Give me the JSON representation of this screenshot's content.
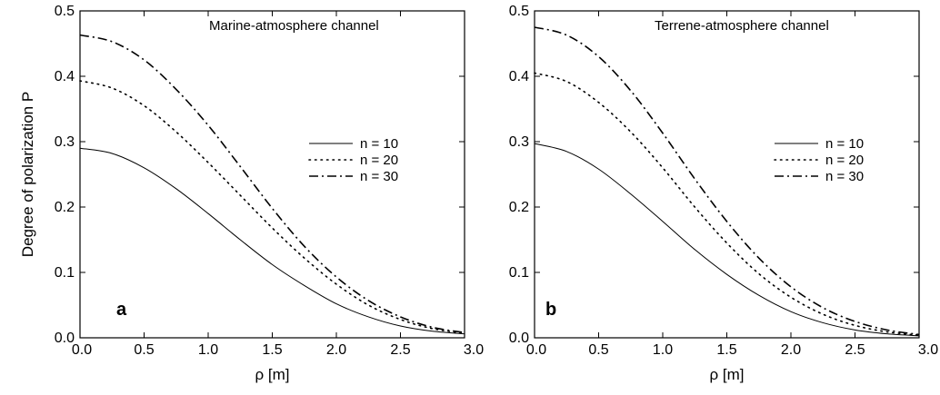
{
  "chart_data": [
    {
      "type": "line",
      "panel_label": "a",
      "annotation": "Marine-atmosphere channel",
      "xlabel": "ρ [m]",
      "ylabel": "Degree of polarization P",
      "xlim": [
        0,
        3
      ],
      "ylim": [
        0,
        0.5
      ],
      "xticks": [
        "0.0",
        "0.5",
        "1.0",
        "1.5",
        "2.0",
        "2.5",
        "3.0"
      ],
      "yticks": [
        "0.0",
        "0.1",
        "0.2",
        "0.3",
        "0.4",
        "0.5"
      ],
      "grid": false,
      "legend_position": "right",
      "series": [
        {
          "name": "n = 10",
          "style": "solid",
          "x": [
            0,
            0.25,
            0.5,
            0.75,
            1.0,
            1.25,
            1.5,
            1.75,
            2.0,
            2.25,
            2.5,
            2.75,
            3.0
          ],
          "y": [
            0.29,
            0.282,
            0.26,
            0.228,
            0.19,
            0.15,
            0.112,
            0.08,
            0.052,
            0.032,
            0.018,
            0.01,
            0.006
          ]
        },
        {
          "name": "n = 20",
          "style": "dotted",
          "x": [
            0,
            0.25,
            0.5,
            0.75,
            1.0,
            1.25,
            1.5,
            1.75,
            2.0,
            2.25,
            2.5,
            2.75,
            3.0
          ],
          "y": [
            0.393,
            0.382,
            0.355,
            0.315,
            0.268,
            0.218,
            0.168,
            0.122,
            0.082,
            0.05,
            0.028,
            0.014,
            0.007
          ]
        },
        {
          "name": "n = 30",
          "style": "dashdot",
          "x": [
            0,
            0.25,
            0.5,
            0.75,
            1.0,
            1.25,
            1.5,
            1.75,
            2.0,
            2.25,
            2.5,
            2.75,
            3.0
          ],
          "y": [
            0.463,
            0.453,
            0.425,
            0.38,
            0.325,
            0.262,
            0.198,
            0.14,
            0.093,
            0.057,
            0.032,
            0.016,
            0.008
          ]
        }
      ]
    },
    {
      "type": "line",
      "panel_label": "b",
      "annotation": "Terrene-atmosphere channel",
      "xlabel": "ρ [m]",
      "ylabel": "",
      "xlim": [
        0,
        3
      ],
      "ylim": [
        0,
        0.5
      ],
      "xticks": [
        "0.0",
        "0.5",
        "1.0",
        "1.5",
        "2.0",
        "2.5",
        "3.0"
      ],
      "yticks": [
        "0.0",
        "0.1",
        "0.2",
        "0.3",
        "0.4",
        "0.5"
      ],
      "grid": false,
      "legend_position": "right",
      "series": [
        {
          "name": "n = 10",
          "style": "solid",
          "x": [
            0,
            0.25,
            0.5,
            0.75,
            1.0,
            1.25,
            1.5,
            1.75,
            2.0,
            2.25,
            2.5,
            2.75,
            3.0
          ],
          "y": [
            0.297,
            0.285,
            0.258,
            0.22,
            0.178,
            0.135,
            0.097,
            0.065,
            0.04,
            0.023,
            0.012,
            0.006,
            0.003
          ]
        },
        {
          "name": "n = 20",
          "style": "dotted",
          "x": [
            0,
            0.25,
            0.5,
            0.75,
            1.0,
            1.25,
            1.5,
            1.75,
            2.0,
            2.25,
            2.5,
            2.75,
            3.0
          ],
          "y": [
            0.405,
            0.392,
            0.36,
            0.315,
            0.26,
            0.2,
            0.145,
            0.098,
            0.062,
            0.036,
            0.019,
            0.009,
            0.004
          ]
        },
        {
          "name": "n = 30",
          "style": "dashdot",
          "x": [
            0,
            0.25,
            0.5,
            0.75,
            1.0,
            1.25,
            1.5,
            1.75,
            2.0,
            2.25,
            2.5,
            2.75,
            3.0
          ],
          "y": [
            0.475,
            0.463,
            0.43,
            0.378,
            0.313,
            0.243,
            0.178,
            0.122,
            0.078,
            0.046,
            0.025,
            0.012,
            0.005
          ]
        }
      ]
    }
  ]
}
